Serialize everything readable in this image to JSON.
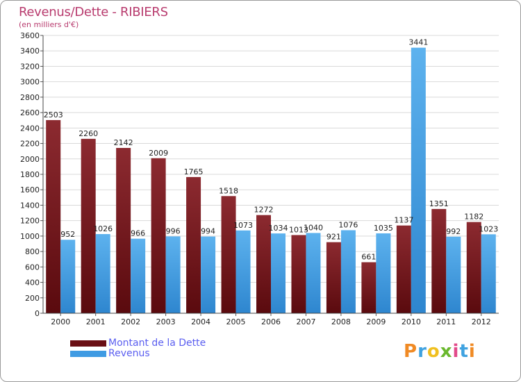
{
  "chart_data": {
    "type": "bar",
    "title": "Revenus/Dette - RIBIERS",
    "subtitle": "(en milliers d'€)",
    "categories": [
      "2000",
      "2001",
      "2002",
      "2003",
      "2004",
      "2005",
      "2006",
      "2007",
      "2008",
      "2009",
      "2010",
      "2011",
      "2012"
    ],
    "series": [
      {
        "name": "Montant de la Dette",
        "color": "#7a1a1f",
        "values": [
          2503,
          2260,
          2142,
          2009,
          1765,
          1518,
          1272,
          1013,
          921,
          661,
          1137,
          1351,
          1182
        ]
      },
      {
        "name": "Revenus",
        "color": "#4aa3e6",
        "values": [
          952,
          1026,
          966,
          996,
          994,
          1073,
          1034,
          1040,
          1076,
          1035,
          3441,
          992,
          1023
        ]
      }
    ],
    "yticks": [
      0,
      200,
      400,
      600,
      800,
      1000,
      1200,
      1400,
      1600,
      1800,
      2000,
      2200,
      2400,
      2600,
      2800,
      3000,
      3200,
      3400,
      3600
    ],
    "ylim": [
      0,
      3600
    ],
    "xlabel": "",
    "ylabel": "",
    "grid": true,
    "legend_position": "bottom-left"
  },
  "legend": {
    "items": [
      {
        "label": "Montant de la Dette",
        "color": "#6a0f14"
      },
      {
        "label": "Revenus",
        "color": "#3f9be3"
      }
    ]
  },
  "logo": {
    "letters": [
      "P",
      "r",
      "o",
      "x",
      "i",
      "t",
      "i"
    ],
    "colors": [
      "#f08a24",
      "#3fa2e0",
      "#f0c020",
      "#6ab82e",
      "#e24a8a",
      "#3fa2e0",
      "#f08a24"
    ]
  }
}
